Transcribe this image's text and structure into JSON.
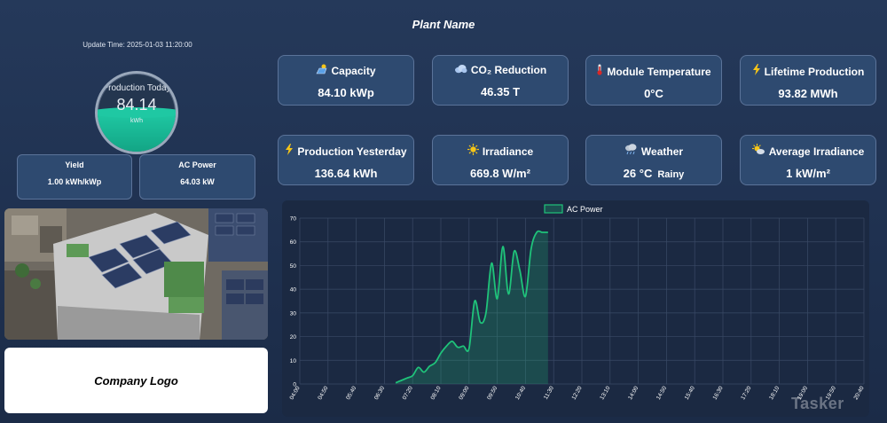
{
  "plant_name": "Plant Name",
  "update_time": "Update Time: 2025-01-03 11:20:00",
  "gauge": {
    "label": "Production Today",
    "value": "84.14",
    "unit": "kWh",
    "fill_fraction": 0.5
  },
  "small_cards": [
    {
      "title": "Yield",
      "value": "1.00 kWh/kWp"
    },
    {
      "title": "AC Power",
      "value": "64.03 kW"
    }
  ],
  "kpis": [
    {
      "title": "Capacity",
      "value": "84.10 kWp",
      "icon": "solar-panel-icon"
    },
    {
      "title": "CO₂ Reduction",
      "value": "46.35 T",
      "icon": "cloud-icon"
    },
    {
      "title": "Module Temperature",
      "value": "0°C",
      "icon": "thermometer-icon"
    },
    {
      "title": "Lifetime Production",
      "value": "93.82 MWh",
      "icon": "lightning-icon"
    },
    {
      "title": "Production Yesterday",
      "value": "136.64 kWh",
      "icon": "lightning-icon"
    },
    {
      "title": "Irradiance",
      "value": "669.8 W/m²",
      "icon": "sun-icon"
    },
    {
      "title": "Weather",
      "value": "26 °C",
      "sub": "Rainy",
      "icon": "rain-cloud-icon"
    },
    {
      "title": "Average Irradiance",
      "value": "1 kW/m²",
      "icon": "sun-cloud-icon"
    }
  ],
  "company_logo": "Company Logo",
  "watermark": "Tasker",
  "colors": {
    "accent": "#1fc37a",
    "card": "#2e4a70",
    "background": "#1f3150"
  },
  "chart_data": {
    "type": "area",
    "legend": [
      "AC Power"
    ],
    "legend_position": "top",
    "grid": true,
    "ylim": [
      0,
      70
    ],
    "yticks": [
      0,
      10,
      20,
      30,
      40,
      50,
      60,
      70
    ],
    "xticks": [
      "04:00",
      "04:50",
      "05:40",
      "06:30",
      "07:20",
      "08:10",
      "09:00",
      "09:50",
      "10:40",
      "11:30",
      "12:20",
      "13:10",
      "14:00",
      "14:50",
      "15:40",
      "16:30",
      "17:20",
      "18:10",
      "19:00",
      "19:50",
      "20:40"
    ],
    "series": [
      {
        "name": "AC Power",
        "x": [
          "06:50",
          "07:00",
          "07:10",
          "07:20",
          "07:30",
          "07:40",
          "07:50",
          "08:00",
          "08:10",
          "08:20",
          "08:30",
          "08:40",
          "08:50",
          "09:00",
          "09:10",
          "09:20",
          "09:30",
          "09:40",
          "09:50",
          "10:00",
          "10:10",
          "10:20",
          "10:30",
          "10:40",
          "10:50",
          "11:00",
          "11:10",
          "11:20"
        ],
        "values": [
          0.5,
          1.5,
          2.5,
          3.5,
          7,
          5,
          7.5,
          9,
          13,
          16,
          18,
          15.5,
          16,
          15,
          35,
          26,
          30,
          51,
          36,
          58,
          38,
          56,
          48,
          37,
          57,
          64,
          64,
          64
        ]
      }
    ]
  }
}
